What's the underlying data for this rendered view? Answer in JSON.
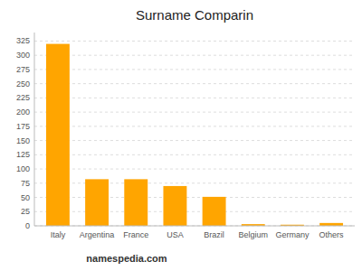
{
  "chart_data": {
    "type": "bar",
    "title": "Surname Comparin",
    "categories": [
      "Italy",
      "Argentina",
      "France",
      "USA",
      "Brazil",
      "Belgium",
      "Germany",
      "Others"
    ],
    "values": [
      320,
      82,
      82,
      70,
      51,
      3,
      2,
      5
    ],
    "color": "#FFA500",
    "ylim": [
      0,
      340
    ],
    "yticks": [
      0,
      25,
      50,
      75,
      100,
      125,
      150,
      175,
      200,
      225,
      250,
      275,
      300,
      325
    ],
    "grid": true,
    "annotations": [
      "namespedia.com"
    ]
  }
}
